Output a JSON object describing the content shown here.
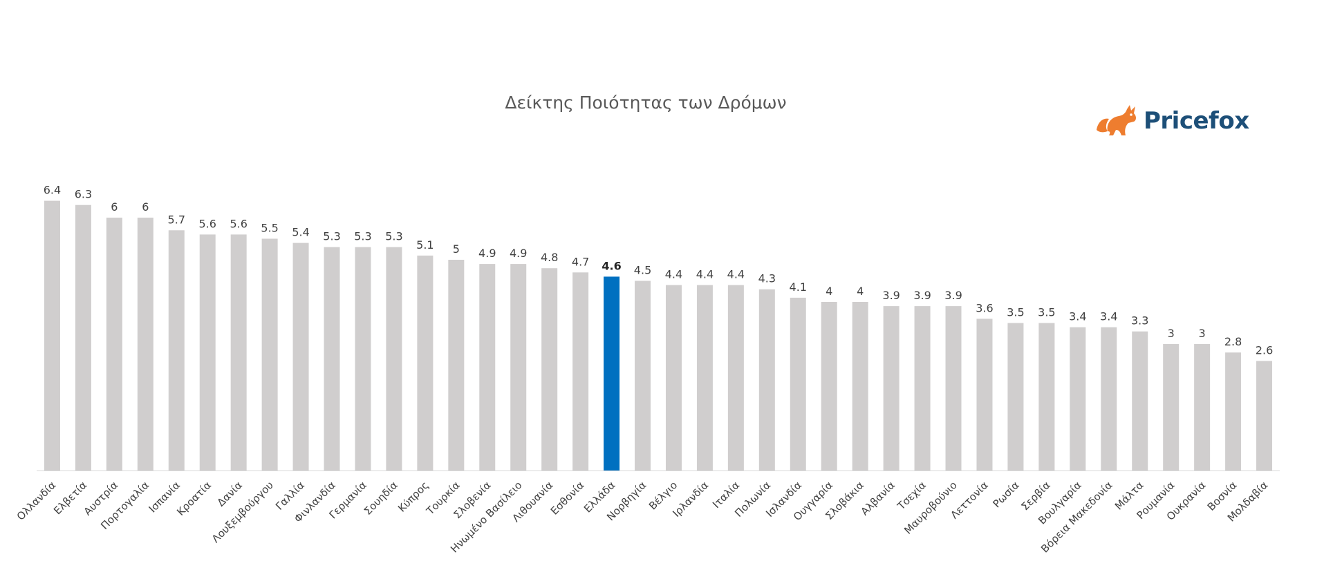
{
  "chart_data": {
    "type": "bar",
    "title": "Δείκτης Ποιότητας των Δρόμων",
    "categories": [
      "Ολλανδία",
      "Ελβετία",
      "Αυστρία",
      "Πορτογαλία",
      "Ισπανία",
      "Κροατία",
      "Δανία",
      "Λουξεμβούργου",
      "Γαλλία",
      "Φινλανδία",
      "Γερμανία",
      "Σουηδία",
      "Κύπρος",
      "Τουρκία",
      "Σλοβενία",
      "Ηνωμένο Βασίλειο",
      "Λιθουανία",
      "Εσθονία",
      "Ελλάδα",
      "Νορβηγία",
      "Βέλγιο",
      "Ιρλανδία",
      "Ιταλία",
      "Πολωνία",
      "Ισλανδία",
      "Ουγγαρία",
      "Σλοβάκια",
      "Αλβανία",
      "Τσεχία",
      "Μαυροβούνιο",
      "Λεττονία",
      "Ρωσία",
      "Σερβία",
      "Βουλγαρία",
      "Βόρεια Μακεδονία",
      "Μάλτα",
      "Ρουμανία",
      "Ουκρανία",
      "Βοσνία",
      "Μολδαβία"
    ],
    "values": [
      6.4,
      6.3,
      6,
      6,
      5.7,
      5.6,
      5.6,
      5.5,
      5.4,
      5.3,
      5.3,
      5.3,
      5.1,
      5,
      4.9,
      4.9,
      4.8,
      4.7,
      4.6,
      4.5,
      4.4,
      4.4,
      4.4,
      4.3,
      4.1,
      4,
      4,
      3.9,
      3.9,
      3.9,
      3.6,
      3.5,
      3.5,
      3.4,
      3.4,
      3.3,
      3,
      3,
      2.8,
      2.6
    ],
    "value_labels": [
      "6.4",
      "6.3",
      "6",
      "6",
      "5.7",
      "5.6",
      "5.6",
      "5.5",
      "5.4",
      "5.3",
      "5.3",
      "5.3",
      "5.1",
      "5",
      "4.9",
      "4.9",
      "4.8",
      "4.7",
      "4.6",
      "4.5",
      "4.4",
      "4.4",
      "4.4",
      "4.3",
      "4.1",
      "4",
      "4",
      "3.9",
      "3.9",
      "3.9",
      "3.6",
      "3.5",
      "3.5",
      "3.4",
      "3.4",
      "3.3",
      "3",
      "3",
      "2.8",
      "2.6"
    ],
    "highlight_category": "Ελλάδα",
    "ylim": [
      0,
      7
    ],
    "grid": false,
    "legend": "none",
    "bar_color": "#d0cece",
    "highlight_color": "#0070c0",
    "axis_color": "#d9d9d9"
  },
  "logo": {
    "text": "Pricefox",
    "icon": "fox-icon",
    "text_color": "#1d4f78",
    "icon_color": "#ee7d2f"
  }
}
